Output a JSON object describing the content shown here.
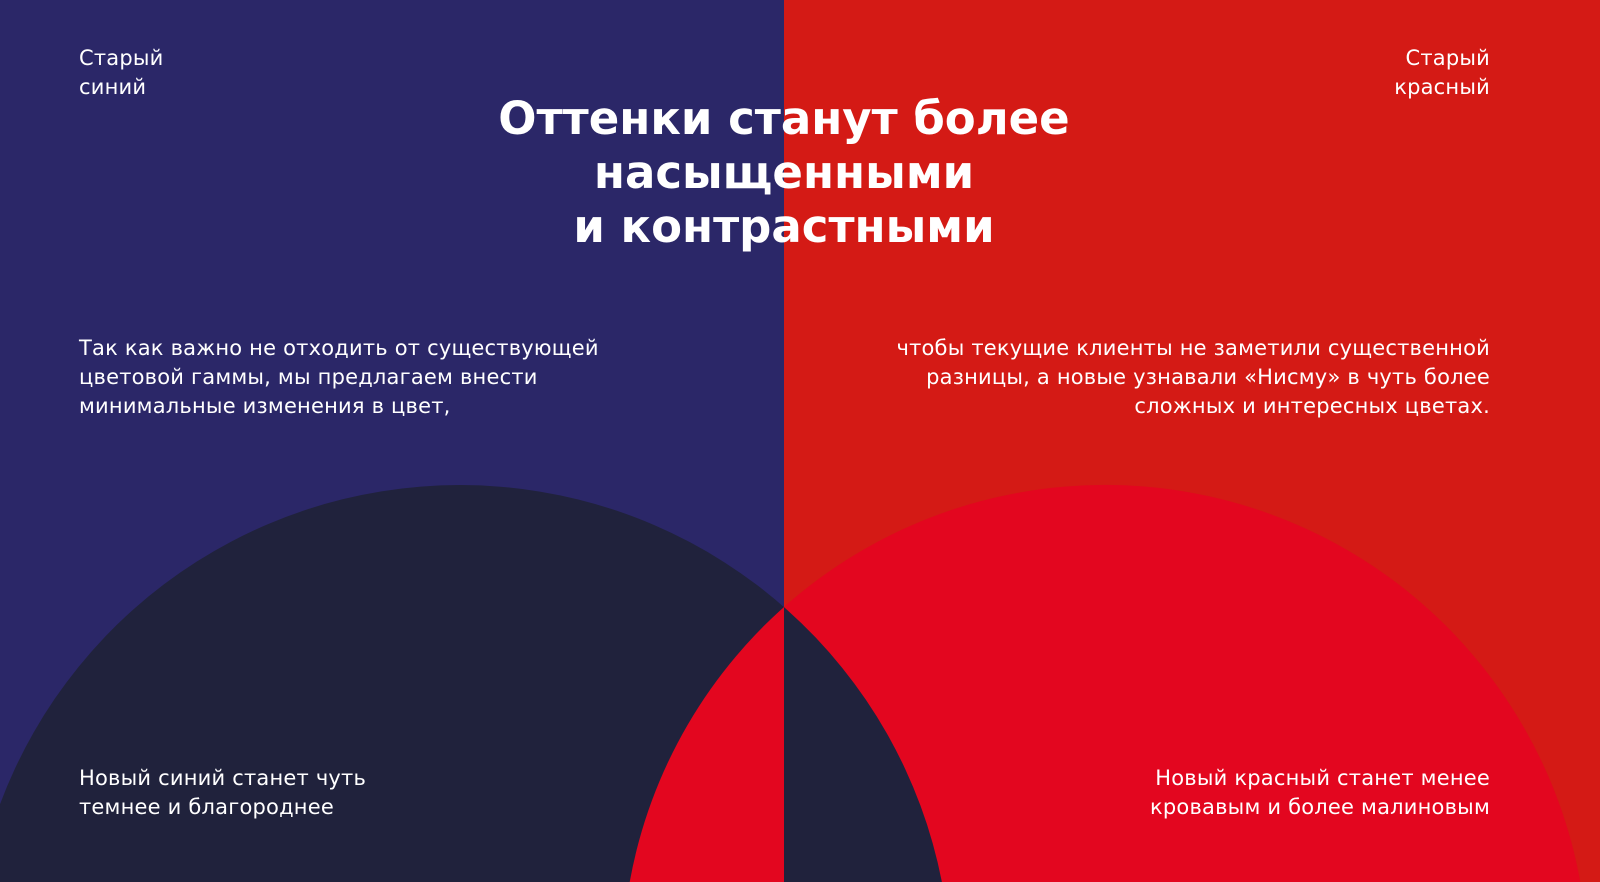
{
  "colors": {
    "old_blue": "#2b2768",
    "old_red": "#d41a15",
    "new_blue": "#20223c",
    "new_red": "#e3061f",
    "text": "#ffffff"
  },
  "labels": {
    "old_blue": [
      "Старый",
      "синий"
    ],
    "old_red": [
      "Старый",
      "красный"
    ]
  },
  "title": [
    "Оттенки станут более",
    "насыщенными",
    "и контрастными"
  ],
  "left_paragraph": [
    "Так как важно не отходить от существующей",
    "цветовой гаммы, мы предлагаем внести",
    "минимальные изменения в цвет,"
  ],
  "right_paragraph": [
    "чтобы текущие клиенты не заметили существенной",
    "разницы, а новые узнавали «Нисму»  в чуть более",
    "сложных и интересных цветах."
  ],
  "new_blue_caption": [
    "Новый синий станет чуть",
    "темнее и благороднее"
  ],
  "new_red_caption": [
    "Новый красный станет менее",
    "кровавым и более малиновым"
  ]
}
